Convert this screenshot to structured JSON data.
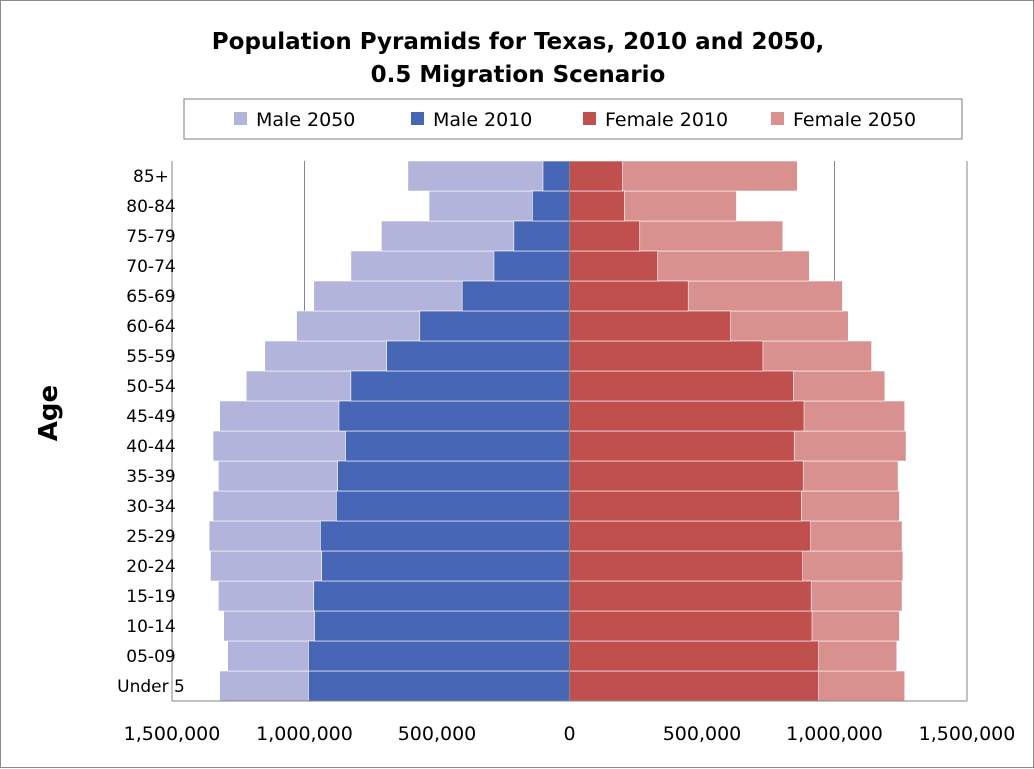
{
  "chart_data": {
    "type": "bar",
    "orientation": "horizontal",
    "layout": "population-pyramid",
    "title": "Population Pyramids for Texas, 2010 and 2050,",
    "subtitle": "0.5 Migration Scenario",
    "ylabel": "Age",
    "xlabel": "",
    "xlim": [
      -1500000,
      1500000
    ],
    "x_ticks": [
      -1500000,
      -1000000,
      -500000,
      0,
      500000,
      1000000,
      1500000
    ],
    "x_tick_labels": [
      "1,500,000",
      "1,000,000",
      "500,000",
      "0",
      "500,000",
      "1,000,000",
      "1,500,000"
    ],
    "grid": "vertical major gridlines",
    "legend_position": "top",
    "categories": [
      "Under 5",
      "05-09",
      "10-14",
      "15-19",
      "20-24",
      "25-29",
      "30-34",
      "35-39",
      "40-44",
      "45-49",
      "50-54",
      "55-59",
      "60-64",
      "65-69",
      "70-74",
      "75-79",
      "80-84",
      "85+"
    ],
    "series": [
      {
        "name": "Male 2050",
        "side": "left",
        "color": "#b3b4dc",
        "values": [
          1320000,
          1290000,
          1305000,
          1325000,
          1355000,
          1360000,
          1345000,
          1325000,
          1345000,
          1320000,
          1220000,
          1150000,
          1030000,
          965000,
          825000,
          710000,
          530000,
          610000
        ]
      },
      {
        "name": "Male 2010",
        "side": "left",
        "color": "#4766b5",
        "values": [
          985000,
          985000,
          962000,
          965000,
          935000,
          940000,
          880000,
          875000,
          845000,
          870000,
          825000,
          690000,
          565000,
          405000,
          285000,
          210000,
          140000,
          100000
        ]
      },
      {
        "name": "Female 2010",
        "side": "right",
        "color": "#c0504d",
        "values": [
          940000,
          940000,
          915000,
          912000,
          880000,
          910000,
          875000,
          882000,
          848000,
          885000,
          845000,
          730000,
          608000,
          448000,
          333000,
          265000,
          207000,
          200000
        ]
      },
      {
        "name": "Female 2050",
        "side": "right",
        "color": "#d9918f",
        "values": [
          1265000,
          1235000,
          1245000,
          1255000,
          1258000,
          1255000,
          1245000,
          1240000,
          1270000,
          1265000,
          1190000,
          1140000,
          1052000,
          1030000,
          905000,
          805000,
          630000,
          860000
        ]
      }
    ]
  }
}
